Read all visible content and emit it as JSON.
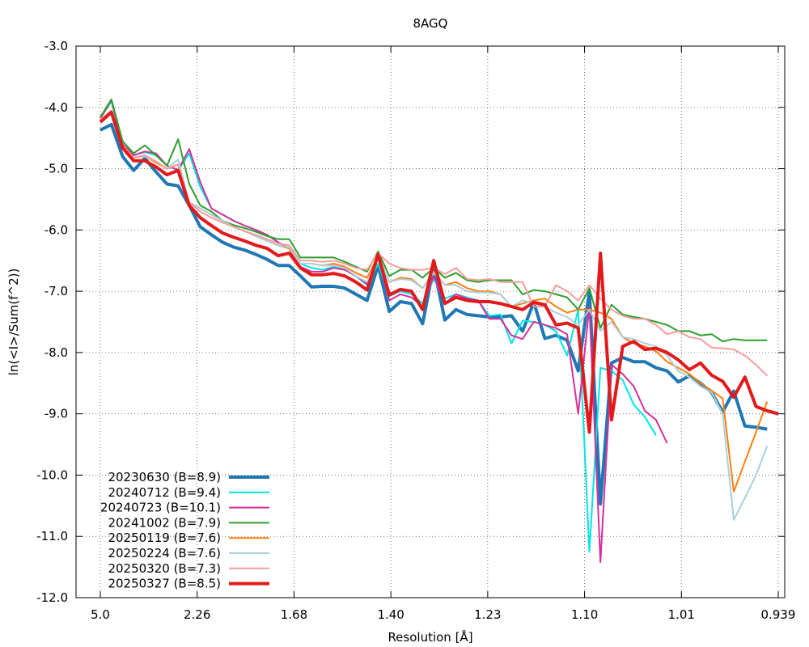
{
  "chart_data": {
    "type": "line",
    "title": "8AGQ",
    "xlabel": "Resolution [Å]",
    "ylabel": "ln(<I>/Sum(f^2))",
    "ylim": [
      -12.0,
      -3.0
    ],
    "yticks": [
      "-3.0",
      "-4.0",
      "-5.0",
      "-6.0",
      "-7.0",
      "-8.0",
      "-9.0",
      "-10.0",
      "-11.0",
      "-12.0"
    ],
    "xticks": [
      "5.0",
      "2.26",
      "1.68",
      "1.40",
      "1.23",
      "1.10",
      "1.01",
      "0.939"
    ],
    "grid": true,
    "legend_position": "bottom-left",
    "series": [
      {
        "name": "20230630 (B=8.9)",
        "color": "#1f77b4",
        "width": 4,
        "y": [
          -4.37,
          -4.28,
          -4.8,
          -5.03,
          -4.83,
          -5.05,
          -5.25,
          -5.28,
          -5.6,
          -5.95,
          -6.08,
          -6.2,
          -6.28,
          -6.33,
          -6.4,
          -6.48,
          -6.58,
          -6.58,
          -6.75,
          -6.93,
          -6.92,
          -6.92,
          -6.95,
          -7.05,
          -7.15,
          -6.58,
          -7.33,
          -7.17,
          -7.2,
          -7.53,
          -6.6,
          -7.47,
          -7.3,
          -7.38,
          -7.4,
          -7.42,
          -7.42,
          -7.4,
          -7.65,
          -7.18,
          -7.77,
          -7.72,
          -7.8,
          -8.3,
          -7.0,
          -10.47,
          -8.17,
          -8.08,
          -8.15,
          -8.15,
          -8.25,
          -8.3,
          -8.48,
          -8.38,
          -8.5,
          -8.65,
          -8.97,
          -8.63,
          -9.2,
          -9.22,
          -9.25
        ]
      },
      {
        "name": "20240712 (B=9.4)",
        "color": "#00e5e5",
        "width": 2,
        "y": [
          -4.18,
          -3.9,
          -4.6,
          -4.78,
          -4.73,
          -4.78,
          -4.95,
          -5.03,
          -4.75,
          -5.3,
          -5.65,
          -5.75,
          -5.85,
          -5.93,
          -6.0,
          -6.08,
          -6.2,
          -6.3,
          -6.55,
          -6.62,
          -6.65,
          -6.6,
          -6.65,
          -6.75,
          -6.9,
          -6.55,
          -7.08,
          -7.0,
          -7.05,
          -7.2,
          -6.8,
          -7.12,
          -7.05,
          -7.1,
          -7.15,
          -7.4,
          -7.38,
          -7.85,
          -7.48,
          -7.5,
          -7.55,
          -7.65,
          -8.05,
          -7.3,
          -11.25,
          -8.25,
          -8.3,
          -8.45,
          -8.85,
          -9.05,
          -9.35
        ]
      },
      {
        "name": "20240723 (B=10.1)",
        "color": "#d62f9b",
        "width": 2,
        "y": [
          -4.18,
          -3.88,
          -4.6,
          -4.78,
          -4.72,
          -4.75,
          -4.95,
          -5.02,
          -4.68,
          -5.22,
          -5.65,
          -5.75,
          -5.85,
          -5.93,
          -6.0,
          -6.08,
          -6.2,
          -6.3,
          -6.6,
          -6.68,
          -6.68,
          -6.62,
          -6.65,
          -6.75,
          -6.88,
          -6.45,
          -7.15,
          -7.05,
          -7.1,
          -7.25,
          -6.75,
          -7.2,
          -7.05,
          -7.12,
          -7.15,
          -7.45,
          -7.45,
          -7.72,
          -7.78,
          -7.5,
          -7.55,
          -7.6,
          -7.7,
          -9.0,
          -7.25,
          -11.42,
          -8.2,
          -8.35,
          -8.55,
          -8.95,
          -9.1,
          -9.48
        ]
      },
      {
        "name": "20241002 (B=7.9)",
        "color": "#2ca02c",
        "width": 2,
        "y": [
          -4.16,
          -3.87,
          -4.55,
          -4.75,
          -4.62,
          -4.78,
          -4.95,
          -4.52,
          -5.25,
          -5.6,
          -5.7,
          -5.85,
          -5.92,
          -5.97,
          -6.03,
          -6.1,
          -6.15,
          -6.15,
          -6.45,
          -6.45,
          -6.45,
          -6.45,
          -6.52,
          -6.6,
          -6.68,
          -6.35,
          -6.75,
          -6.65,
          -6.65,
          -6.78,
          -6.62,
          -6.78,
          -6.7,
          -6.82,
          -6.85,
          -6.82,
          -6.82,
          -6.82,
          -7.05,
          -6.98,
          -7.0,
          -7.05,
          -7.1,
          -7.3,
          -6.95,
          -7.6,
          -7.22,
          -7.38,
          -7.42,
          -7.45,
          -7.5,
          -7.55,
          -7.65,
          -7.65,
          -7.72,
          -7.7,
          -7.82,
          -7.78,
          -7.8,
          -7.8,
          -7.8
        ]
      },
      {
        "name": "20250119 (B=7.6)",
        "color": "#ff7f0e",
        "width": 2,
        "y": [
          -4.22,
          -4.08,
          -4.62,
          -4.82,
          -4.8,
          -4.9,
          -5.0,
          -4.93,
          -5.55,
          -5.65,
          -5.75,
          -5.85,
          -5.95,
          -6.02,
          -6.1,
          -6.18,
          -6.25,
          -6.3,
          -6.55,
          -6.55,
          -6.58,
          -6.55,
          -6.6,
          -6.7,
          -6.78,
          -6.42,
          -6.85,
          -6.78,
          -6.8,
          -6.95,
          -6.68,
          -6.9,
          -6.85,
          -6.95,
          -7.0,
          -7.0,
          -7.05,
          -7.25,
          -7.2,
          -7.15,
          -7.12,
          -7.25,
          -7.35,
          -7.3,
          -7.3,
          -7.35,
          -7.45,
          -7.75,
          -7.85,
          -7.9,
          -7.98,
          -8.15,
          -8.25,
          -8.35,
          -8.5,
          -8.62,
          -8.75,
          -10.27,
          -9.78,
          -9.3,
          -8.8
        ]
      },
      {
        "name": "20250224 (B=7.6)",
        "color": "#a8d0dd",
        "width": 2,
        "y": [
          -4.2,
          -4.08,
          -4.62,
          -4.82,
          -4.8,
          -4.88,
          -5.0,
          -4.85,
          -5.55,
          -5.65,
          -5.75,
          -5.85,
          -5.95,
          -6.02,
          -6.1,
          -6.18,
          -6.25,
          -6.28,
          -6.55,
          -6.55,
          -6.58,
          -6.58,
          -6.62,
          -6.75,
          -6.85,
          -6.42,
          -6.85,
          -6.8,
          -6.82,
          -6.95,
          -6.7,
          -6.9,
          -6.9,
          -7.0,
          -7.02,
          -7.02,
          -7.05,
          -7.25,
          -7.15,
          -7.2,
          -7.25,
          -7.35,
          -7.42,
          -7.55,
          -7.3,
          -7.65,
          -7.5,
          -7.75,
          -7.78,
          -7.85,
          -7.9,
          -8.05,
          -8.3,
          -8.4,
          -8.55,
          -8.65,
          -9.0,
          -10.73,
          -10.37,
          -10.0,
          -9.52
        ]
      },
      {
        "name": "20250320 (B=7.3)",
        "color": "#f79d9d",
        "width": 2,
        "y": [
          -4.2,
          -4.05,
          -4.62,
          -4.82,
          -4.78,
          -4.88,
          -5.0,
          -4.93,
          -5.55,
          -5.7,
          -5.8,
          -5.88,
          -5.95,
          -6.02,
          -6.08,
          -6.15,
          -6.22,
          -6.25,
          -6.5,
          -6.5,
          -6.52,
          -6.5,
          -6.55,
          -6.62,
          -6.65,
          -6.38,
          -6.55,
          -6.62,
          -6.65,
          -6.65,
          -6.62,
          -6.72,
          -6.62,
          -6.8,
          -6.82,
          -6.8,
          -6.85,
          -6.85,
          -6.85,
          -7.25,
          -7.25,
          -6.9,
          -7.0,
          -7.15,
          -6.9,
          -7.12,
          -7.3,
          -7.4,
          -7.45,
          -7.45,
          -7.55,
          -7.7,
          -7.65,
          -7.75,
          -7.78,
          -7.92,
          -7.93,
          -7.95,
          -8.05,
          -8.2,
          -8.38
        ]
      },
      {
        "name": "20250327 (B=8.5)",
        "color": "#e31a1c",
        "width": 4,
        "y": [
          -4.24,
          -4.08,
          -4.66,
          -4.87,
          -4.87,
          -4.97,
          -5.1,
          -5.03,
          -5.6,
          -5.8,
          -5.93,
          -6.05,
          -6.12,
          -6.18,
          -6.25,
          -6.3,
          -6.42,
          -6.38,
          -6.62,
          -6.73,
          -6.73,
          -6.71,
          -6.75,
          -6.85,
          -6.98,
          -6.4,
          -7.06,
          -6.97,
          -7.0,
          -7.3,
          -6.5,
          -7.2,
          -7.1,
          -7.15,
          -7.17,
          -7.17,
          -7.2,
          -7.25,
          -7.3,
          -7.18,
          -7.22,
          -7.55,
          -7.52,
          -7.6,
          -9.3,
          -6.38,
          -9.1,
          -7.9,
          -7.82,
          -7.95,
          -7.93,
          -8.0,
          -8.12,
          -8.28,
          -8.17,
          -8.37,
          -8.47,
          -8.73,
          -8.4,
          -8.88,
          -8.95,
          -9.0
        ]
      }
    ]
  }
}
